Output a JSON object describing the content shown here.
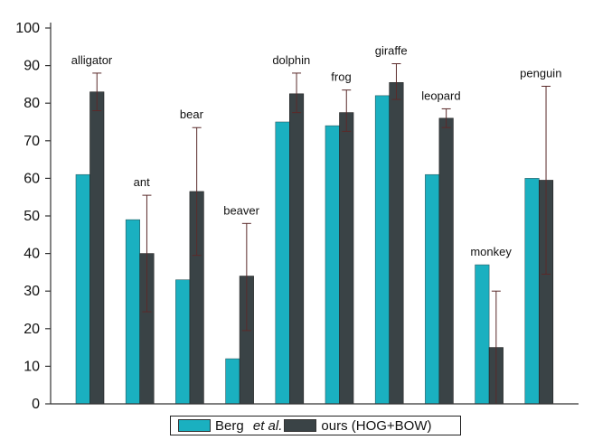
{
  "colors": {
    "series1": "#1ab0c0",
    "series2": "#3a4346",
    "error_bar": "#5a2a2a",
    "axis": "#333333"
  },
  "legend": {
    "series1_text": "Berg",
    "series1_italic": "et al.",
    "series2_text": "ours (HOG+BOW)"
  },
  "chart_data": {
    "type": "bar",
    "categories": [
      "alligator",
      "ant",
      "bear",
      "beaver",
      "dolphin",
      "frog",
      "giraffe",
      "leopard",
      "monkey",
      "penguin"
    ],
    "series": [
      {
        "name": "Berg et al.",
        "values": [
          61,
          49,
          33,
          12,
          75,
          74,
          82,
          61,
          37,
          60
        ]
      },
      {
        "name": "ours (HOG+BOW)",
        "values": [
          83,
          40,
          56.5,
          34,
          82.5,
          77.5,
          85.5,
          76,
          15,
          59.5
        ],
        "error_low": [
          78,
          24.5,
          39.5,
          19.5,
          77.5,
          72.5,
          81,
          73.5,
          0,
          34.5
        ],
        "error_high": [
          88,
          55.5,
          73.5,
          48,
          88,
          83.5,
          90.5,
          78.5,
          30,
          84.5
        ]
      }
    ],
    "ylim": [
      0,
      100
    ],
    "yticks": [
      0,
      10,
      20,
      30,
      40,
      50,
      60,
      70,
      80,
      90,
      100
    ],
    "grid": false,
    "legend_position": "bottom-center"
  }
}
